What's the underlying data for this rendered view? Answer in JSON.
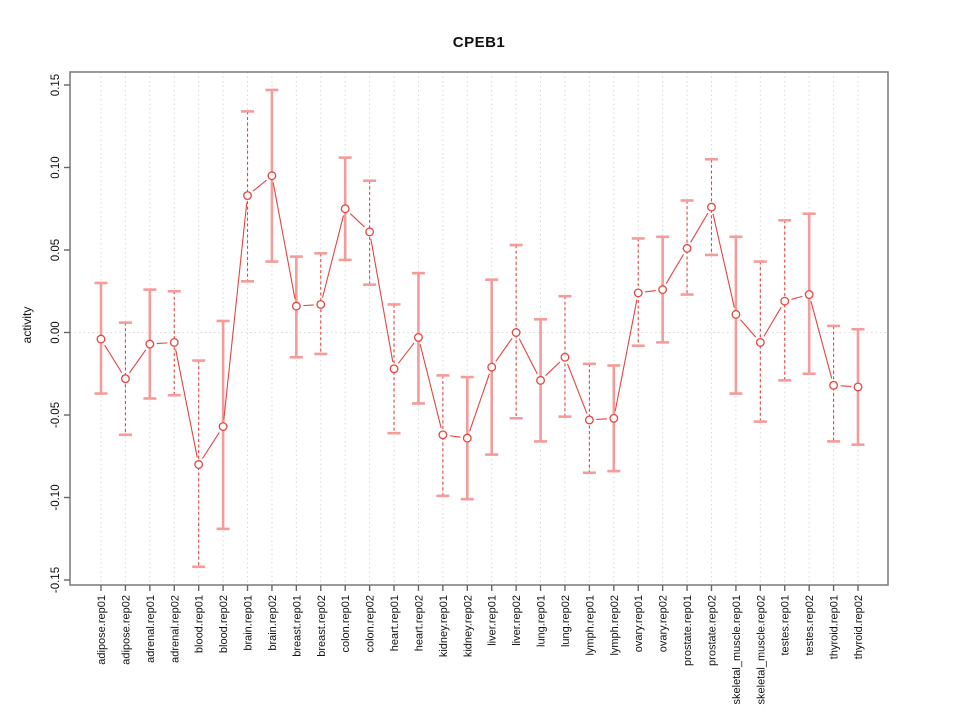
{
  "title": "CPEB1",
  "colors": {
    "point_red": "#e8433f",
    "errorbar_pink": "#f59b99",
    "grid_gray": "#d9d9d9",
    "axis_gray": "#808080",
    "tick_gray": "#666666",
    "text_black": "#111111"
  },
  "chart_data": {
    "type": "line",
    "subtype": "points-with-error-bars",
    "title": "CPEB1",
    "xlabel": "",
    "ylabel": "activity",
    "ylim": [
      -0.156,
      0.156
    ],
    "ytick_labels": [
      "0.15",
      "0.10",
      "0.05",
      "0.00",
      "-0.05",
      "-0.10",
      "-0.15"
    ],
    "grid": "vertical dotted gridline at every category; dotted horizontal line at y=0",
    "legend_position": "none",
    "categories": [
      "adipose.rep01",
      "adipose.rep02",
      "adrenal.rep01",
      "adrenal.rep02",
      "blood.rep01",
      "blood.rep02",
      "brain.rep01",
      "brain.rep02",
      "breast.rep01",
      "breast.rep02",
      "colon.rep01",
      "colon.rep02",
      "heart.rep01",
      "heart.rep02",
      "kidney.rep01",
      "kidney.rep02",
      "liver.rep01",
      "liver.rep02",
      "lung.rep01",
      "lung.rep02",
      "lymph.rep01",
      "lymph.rep02",
      "ovary.rep01",
      "ovary.rep02",
      "prostate.rep01",
      "prostate.rep02",
      "skeletal_muscle.rep01",
      "skeletal_muscle.rep02",
      "testes.rep01",
      "testes.rep02",
      "thyroid.rep01",
      "thyroid.rep02"
    ],
    "values": [
      -0.004,
      -0.028,
      -0.007,
      -0.006,
      -0.08,
      -0.057,
      0.083,
      0.095,
      0.016,
      0.017,
      0.075,
      0.061,
      -0.022,
      -0.003,
      -0.062,
      -0.064,
      -0.021,
      0.0,
      -0.029,
      -0.015,
      -0.053,
      -0.052,
      0.024,
      0.026,
      0.051,
      0.076,
      0.011,
      -0.006,
      0.019,
      0.023,
      -0.032,
      -0.033
    ],
    "upper": [
      0.03,
      0.006,
      0.026,
      0.025,
      -0.017,
      0.007,
      0.134,
      0.147,
      0.046,
      0.048,
      0.106,
      0.092,
      0.017,
      0.036,
      -0.026,
      -0.027,
      0.032,
      0.053,
      0.008,
      0.022,
      -0.019,
      -0.02,
      0.057,
      0.058,
      0.08,
      0.105,
      0.058,
      0.043,
      0.068,
      0.072,
      0.004,
      0.002
    ],
    "lower": [
      -0.037,
      -0.062,
      -0.04,
      -0.038,
      -0.142,
      -0.119,
      0.031,
      0.043,
      -0.015,
      -0.013,
      0.044,
      0.029,
      -0.061,
      -0.043,
      -0.099,
      -0.101,
      -0.074,
      -0.052,
      -0.066,
      -0.051,
      -0.085,
      -0.084,
      -0.008,
      -0.006,
      0.023,
      0.047,
      -0.037,
      -0.054,
      -0.029,
      -0.025,
      -0.066,
      -0.068
    ],
    "stem_style": [
      "solid",
      "dashed",
      "solid",
      "dashed",
      "dashed",
      "solid",
      "dashed",
      "solid",
      "solid",
      "dashed",
      "solid",
      "dashed",
      "dashed",
      "solid",
      "dashed",
      "solid",
      "solid",
      "dashed",
      "solid",
      "dashed",
      "dashed",
      "solid",
      "dashed",
      "solid",
      "dashed",
      "dashed",
      "solid",
      "dashed",
      "dashed",
      "solid",
      "dashed",
      "solid"
    ]
  }
}
